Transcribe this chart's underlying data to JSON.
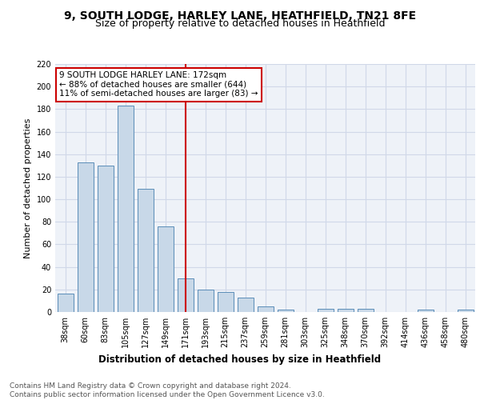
{
  "title": "9, SOUTH LODGE, HARLEY LANE, HEATHFIELD, TN21 8FE",
  "subtitle": "Size of property relative to detached houses in Heathfield",
  "xlabel": "Distribution of detached houses by size in Heathfield",
  "ylabel": "Number of detached properties",
  "categories": [
    "38sqm",
    "60sqm",
    "83sqm",
    "105sqm",
    "127sqm",
    "149sqm",
    "171sqm",
    "193sqm",
    "215sqm",
    "237sqm",
    "259sqm",
    "281sqm",
    "303sqm",
    "325sqm",
    "348sqm",
    "370sqm",
    "392sqm",
    "414sqm",
    "436sqm",
    "458sqm",
    "480sqm"
  ],
  "values": [
    16,
    133,
    130,
    183,
    109,
    76,
    30,
    20,
    18,
    13,
    5,
    2,
    0,
    3,
    3,
    3,
    0,
    0,
    2,
    0,
    2
  ],
  "bar_color": "#c8d8e8",
  "bar_edge_color": "#5b8db8",
  "vline_x": 6,
  "vline_color": "#cc0000",
  "annotation_line1": "9 SOUTH LODGE HARLEY LANE: 172sqm",
  "annotation_line2": "← 88% of detached houses are smaller (644)",
  "annotation_line3": "11% of semi-detached houses are larger (83) →",
  "annotation_box_color": "#cc0000",
  "annotation_box_facecolor": "white",
  "ylim": [
    0,
    220
  ],
  "yticks": [
    0,
    20,
    40,
    60,
    80,
    100,
    120,
    140,
    160,
    180,
    200,
    220
  ],
  "grid_color": "#d0d8e8",
  "background_color": "#eef2f8",
  "footer_text": "Contains HM Land Registry data © Crown copyright and database right 2024.\nContains public sector information licensed under the Open Government Licence v3.0.",
  "title_fontsize": 10,
  "subtitle_fontsize": 9,
  "xlabel_fontsize": 8.5,
  "ylabel_fontsize": 8,
  "tick_fontsize": 7,
  "footer_fontsize": 6.5,
  "annotation_fontsize": 7.5
}
